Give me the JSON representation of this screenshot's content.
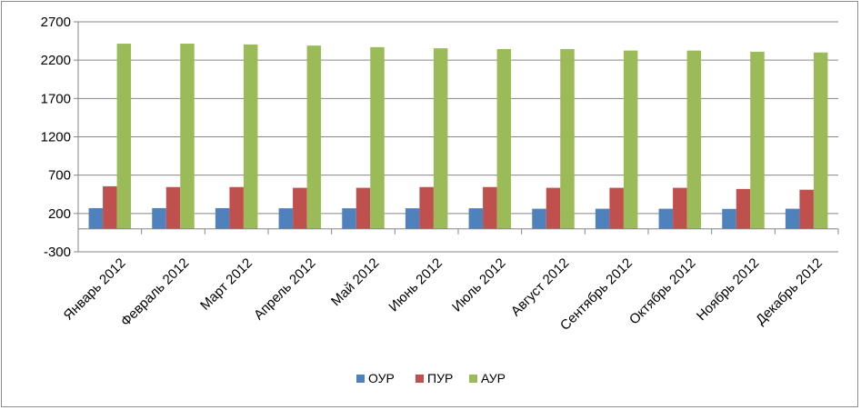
{
  "chart_data": {
    "type": "bar",
    "title": "",
    "xlabel": "",
    "ylabel": "",
    "ylim": [
      -300,
      2700
    ],
    "yticks": [
      -300,
      200,
      700,
      1200,
      1700,
      2200,
      2700
    ],
    "grid": "horizontal",
    "legend_position": "bottom",
    "categories": [
      "Январь 2012",
      "Февраль 2012",
      "Март 2012",
      "Апрель 2012",
      "Май 2012",
      "Июнь 2012",
      "Июль 2012",
      "Август 2012",
      "Сентябрь 2012",
      "Октябрь 2012",
      "Ноябрь 2012",
      "Декабрь 2012"
    ],
    "series": [
      {
        "name": "ОУР",
        "color": "#4f81bd",
        "values": [
          270,
          270,
          270,
          268,
          268,
          268,
          268,
          262,
          262,
          262,
          260,
          262
        ]
      },
      {
        "name": "ПУР",
        "color": "#c0504d",
        "values": [
          555,
          545,
          545,
          535,
          535,
          545,
          545,
          535,
          535,
          535,
          520,
          510
        ]
      },
      {
        "name": "АУР",
        "color": "#9bbb59",
        "values": [
          2415,
          2415,
          2405,
          2390,
          2370,
          2355,
          2345,
          2345,
          2325,
          2325,
          2310,
          2300
        ]
      }
    ]
  }
}
